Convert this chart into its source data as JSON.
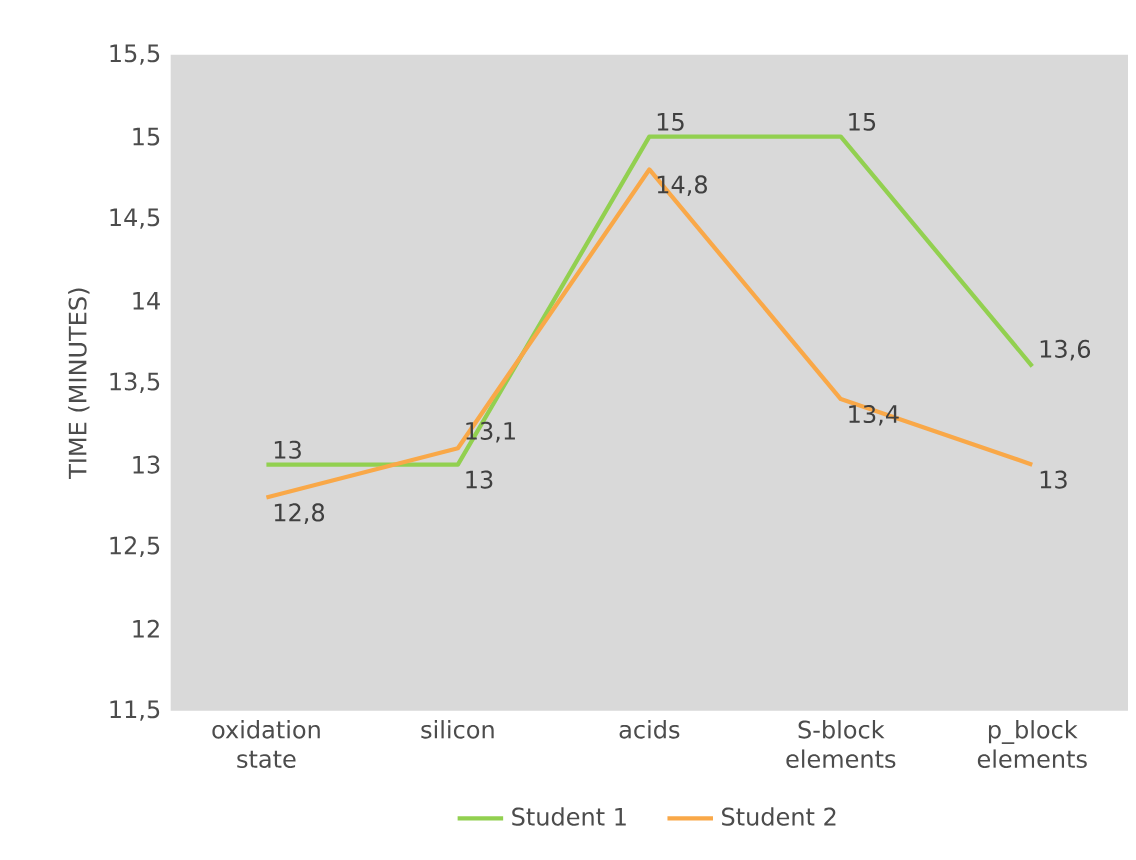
{
  "chart_data": {
    "type": "line",
    "ylabel": "TIME (MINUTES)",
    "categories": [
      "oxidation state",
      "silicon",
      "acids",
      "S-block elements",
      "p_block elements"
    ],
    "series": [
      {
        "name": "Student 1",
        "color": "#92d050",
        "values": [
          13,
          13,
          15,
          15,
          13.6
        ],
        "value_labels": [
          "13",
          "13",
          "15",
          "15",
          "13,6"
        ]
      },
      {
        "name": "Student 2",
        "color": "#f9a848",
        "values": [
          12.8,
          13.1,
          14.8,
          13.4,
          13
        ],
        "value_labels": [
          "12,8",
          "13,1",
          "14,8",
          "13,4",
          "13"
        ]
      }
    ],
    "ylim": [
      11.5,
      15.5
    ],
    "yticks": [
      {
        "value": 11.5,
        "label": "11,5"
      },
      12,
      {
        "value": 12.5,
        "label": "12,5"
      },
      13,
      {
        "value": 13.5,
        "label": "13,5"
      },
      14,
      {
        "value": 14.5,
        "label": "14,5"
      },
      15,
      {
        "value": 15.5,
        "label": "15,5"
      }
    ],
    "grid": false,
    "legend": "bottom",
    "marker": "none",
    "line_style": "solid"
  }
}
